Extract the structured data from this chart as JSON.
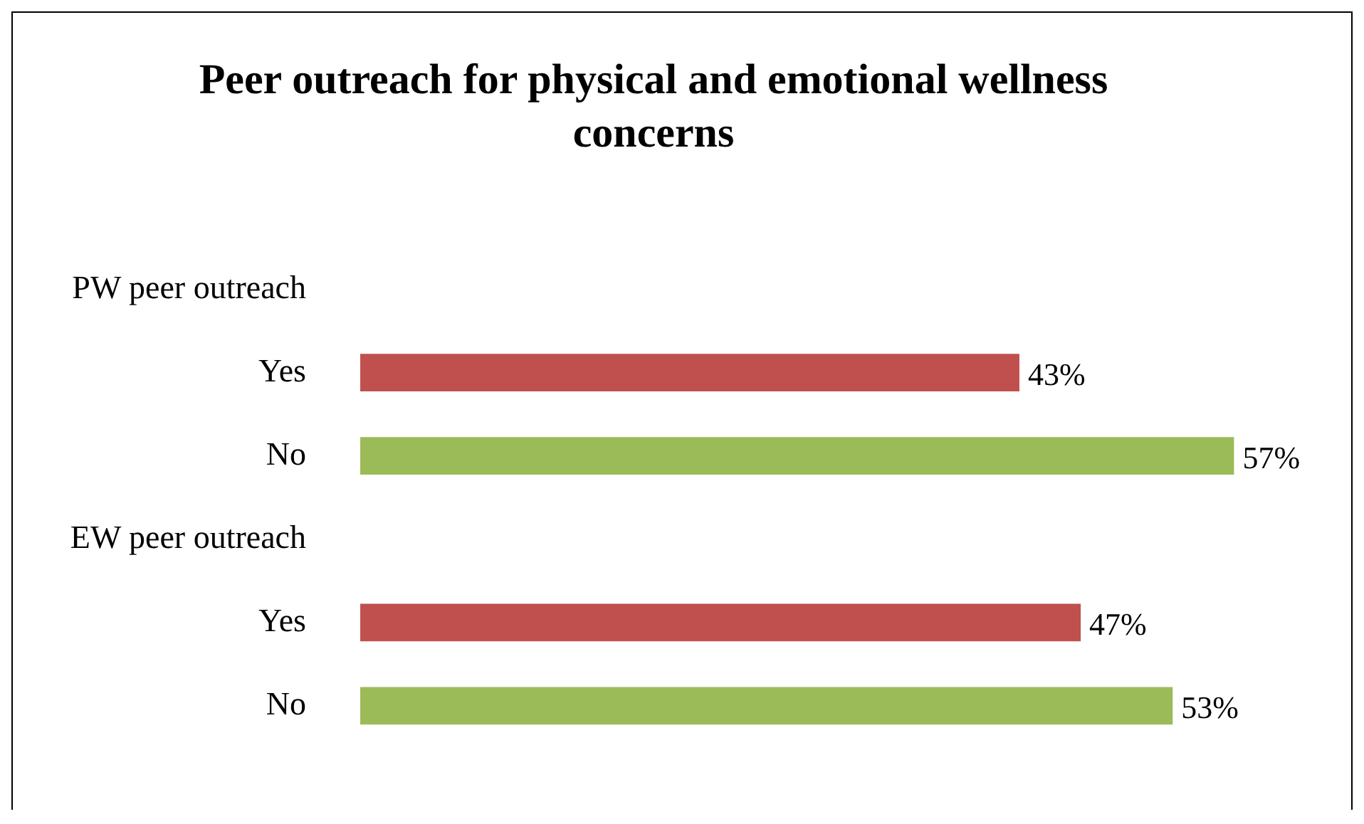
{
  "chart_data": {
    "type": "bar",
    "orientation": "horizontal",
    "title": "Peer outreach for physical and emotional wellness concerns",
    "categories": [
      "PW peer outreach",
      "Yes",
      "No",
      "EW peer outreach",
      "Yes",
      "No"
    ],
    "values": [
      null,
      43,
      57,
      null,
      47,
      53
    ],
    "colors": [
      null,
      "#c0504d",
      "#9bbb59",
      null,
      "#c0504d",
      "#9bbb59"
    ],
    "value_labels": [
      null,
      "43%",
      "57%",
      null,
      "47%",
      "53%"
    ],
    "legend": false
  }
}
